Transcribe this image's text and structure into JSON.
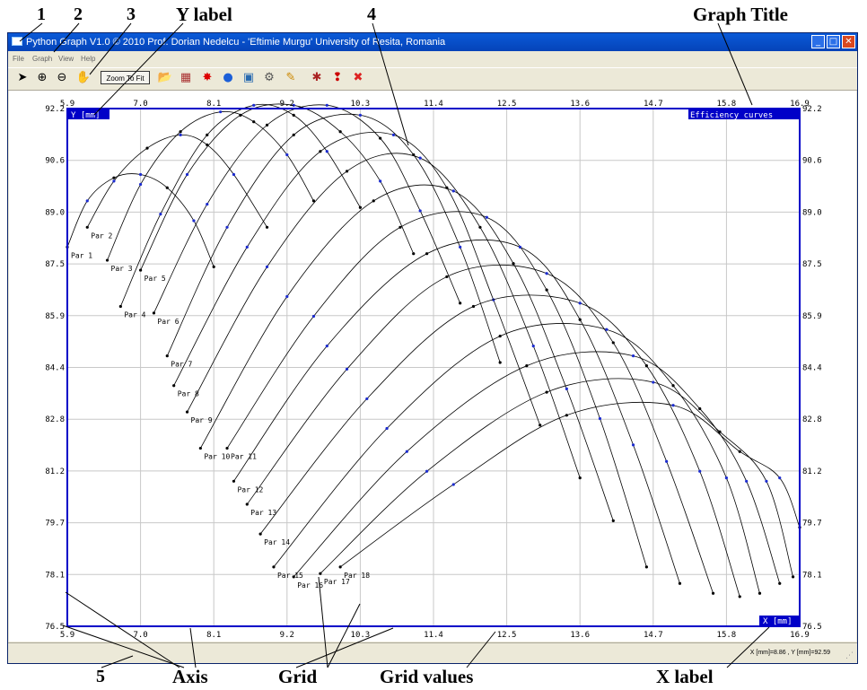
{
  "annotations": {
    "n1": "1",
    "n2": "2",
    "n3": "3",
    "y_label": "Y label",
    "n4": "4",
    "graph_title": "Graph Title",
    "n5": "5",
    "axis": "Axis",
    "grid": "Grid",
    "grid_values": "Grid values",
    "x_label": "X label"
  },
  "window": {
    "title": "Python Graph V1.0 © 2010 Prof. Dorian Nedelcu - 'Eftimie Murgu' University of Resita, Romania",
    "controls": {
      "minimize": "_",
      "maximize": "□",
      "close": "✕"
    }
  },
  "menu": [
    "File",
    "Graph",
    "View",
    "Help"
  ],
  "toolbar": {
    "zoom_to_fit": "Zoom To Fit",
    "icons": [
      "pointer-icon",
      "zoom-in-icon",
      "zoom-out-icon",
      "pan-hand-icon",
      "open-folder-icon",
      "grid-icon",
      "marker-icon",
      "globe-icon",
      "image-icon",
      "settings-icon",
      "pencil-icon",
      "bug-icon",
      "help-icon",
      "exit-icon"
    ],
    "glyphs": [
      "➤",
      "⊕",
      "⊖",
      "✋",
      "📂",
      "▦",
      "✸",
      "●",
      "▣",
      "⚙",
      "✎",
      "✱",
      "❢",
      "✖"
    ]
  },
  "status": {
    "coordinates": "X [mm]=8.86 , Y [mm]=92.59"
  },
  "chart_data": {
    "type": "line",
    "title": "Efficiency curves",
    "xlabel": "X [mm]",
    "ylabel": "Y [mm]",
    "xlim": [
      5.9,
      16.9
    ],
    "ylim": [
      76.5,
      92.2
    ],
    "x_ticks": [
      "5.9",
      "7.0",
      "8.1",
      "9.2",
      "10.3",
      "11.4",
      "12.5",
      "13.6",
      "14.7",
      "15.8",
      "16.9"
    ],
    "y_ticks": [
      "92.2",
      "90.6",
      "89.0",
      "87.5",
      "85.9",
      "84.4",
      "82.8",
      "81.2",
      "79.7",
      "78.1",
      "76.5"
    ],
    "grid": true,
    "series": [
      {
        "name": "Par 1",
        "x": [
          5.9,
          6.2,
          6.6,
          7.0,
          7.4,
          7.8,
          8.1
        ],
        "y": [
          88.0,
          89.4,
          90.1,
          90.2,
          89.8,
          88.8,
          87.4
        ]
      },
      {
        "name": "Par 2",
        "x": [
          6.2,
          6.6,
          7.1,
          7.6,
          8.0,
          8.4,
          8.9
        ],
        "y": [
          88.6,
          90.0,
          91.0,
          91.4,
          91.1,
          90.2,
          88.6
        ]
      },
      {
        "name": "Par 3",
        "x": [
          6.5,
          7.0,
          7.6,
          8.2,
          8.7,
          9.2,
          9.6
        ],
        "y": [
          87.6,
          89.9,
          91.5,
          92.1,
          91.8,
          90.8,
          89.4
        ]
      },
      {
        "name": "Par 4",
        "x": [
          6.7,
          7.3,
          8.0,
          8.7,
          9.3,
          9.8,
          10.3
        ],
        "y": [
          86.2,
          89.0,
          91.4,
          92.3,
          92.0,
          90.9,
          89.2
        ]
      },
      {
        "name": "Par 5",
        "x": [
          7.0,
          7.7,
          8.5,
          9.3,
          10.0,
          10.6,
          11.1
        ],
        "y": [
          87.3,
          90.2,
          92.0,
          92.3,
          91.5,
          90.0,
          87.8
        ]
      },
      {
        "name": "Par 6",
        "x": [
          7.2,
          8.0,
          8.9,
          9.8,
          10.6,
          11.2,
          11.8
        ],
        "y": [
          86.0,
          89.3,
          91.7,
          92.3,
          91.3,
          89.1,
          86.3
        ]
      },
      {
        "name": "Par 7",
        "x": [
          7.4,
          8.3,
          9.3,
          10.3,
          11.1,
          11.8,
          12.4
        ],
        "y": [
          84.7,
          88.6,
          91.4,
          92.0,
          90.8,
          88.0,
          84.5
        ]
      },
      {
        "name": "Par 8",
        "x": [
          7.5,
          8.6,
          9.7,
          10.8,
          11.6,
          12.3,
          13.0
        ],
        "y": [
          83.8,
          88.0,
          90.9,
          91.4,
          89.8,
          86.4,
          82.6
        ]
      },
      {
        "name": "Par 9",
        "x": [
          7.7,
          8.9,
          10.1,
          11.2,
          12.1,
          12.9,
          13.6
        ],
        "y": [
          83.0,
          87.4,
          90.3,
          90.7,
          88.6,
          85.0,
          81.0
        ]
      },
      {
        "name": "Par 10",
        "x": [
          7.9,
          9.2,
          10.5,
          11.7,
          12.6,
          13.4,
          14.1
        ],
        "y": [
          81.9,
          86.5,
          89.4,
          89.7,
          87.5,
          83.7,
          79.7
        ]
      },
      {
        "name": "Par 11",
        "x": [
          8.3,
          9.6,
          10.9,
          12.2,
          13.1,
          13.9,
          14.6
        ],
        "y": [
          81.9,
          85.9,
          88.6,
          88.9,
          86.7,
          82.8,
          78.3
        ]
      },
      {
        "name": "Par 12",
        "x": [
          8.4,
          9.8,
          11.3,
          12.7,
          13.6,
          14.4,
          15.1
        ],
        "y": [
          80.9,
          85.0,
          87.8,
          88.0,
          85.8,
          82.0,
          77.8
        ]
      },
      {
        "name": "Par 13",
        "x": [
          8.6,
          10.1,
          11.6,
          13.1,
          14.1,
          14.9,
          15.6
        ],
        "y": [
          80.2,
          84.3,
          87.1,
          87.2,
          85.1,
          81.5,
          77.5
        ]
      },
      {
        "name": "Par 14",
        "x": [
          8.8,
          10.4,
          12.0,
          13.6,
          14.6,
          15.4,
          16.0
        ],
        "y": [
          79.3,
          83.4,
          86.2,
          86.3,
          84.4,
          81.2,
          77.4
        ]
      },
      {
        "name": "Par 15",
        "x": [
          9.0,
          10.7,
          12.4,
          14.0,
          15.0,
          15.8,
          16.3
        ],
        "y": [
          78.3,
          82.5,
          85.3,
          85.5,
          83.8,
          81.0,
          77.5
        ]
      },
      {
        "name": "Par 16",
        "x": [
          9.3,
          11.0,
          12.8,
          14.4,
          15.4,
          16.1,
          16.6
        ],
        "y": [
          78.0,
          81.8,
          84.4,
          84.7,
          83.1,
          80.9,
          77.8
        ]
      },
      {
        "name": "Par 17",
        "x": [
          9.7,
          11.3,
          13.1,
          14.7,
          15.7,
          16.4,
          16.8
        ],
        "y": [
          78.1,
          81.2,
          83.6,
          83.9,
          82.4,
          80.9,
          78.0
        ]
      },
      {
        "name": "Par 18",
        "x": [
          10.0,
          11.7,
          13.4,
          15.0,
          16.0,
          16.6,
          16.9
        ],
        "y": [
          78.3,
          80.8,
          82.9,
          83.2,
          81.8,
          81.0,
          79.5
        ]
      }
    ]
  }
}
